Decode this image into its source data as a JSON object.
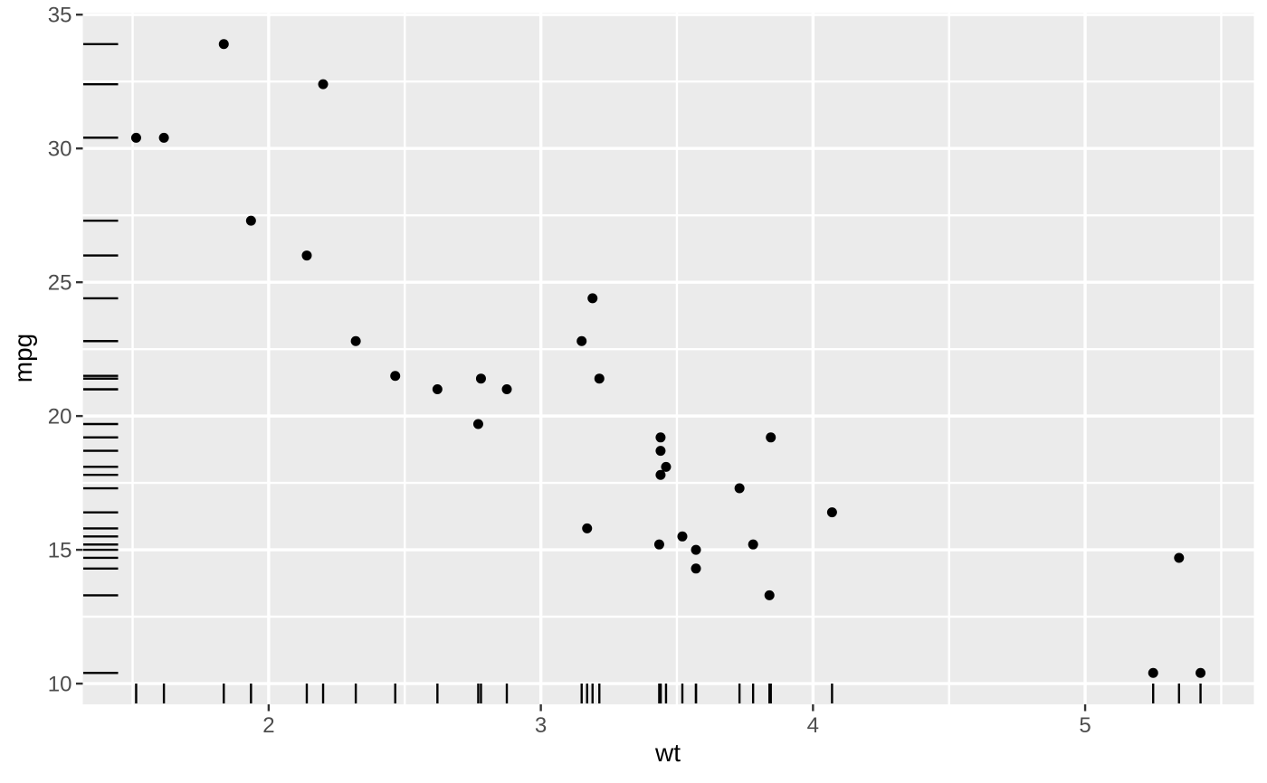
{
  "chart_data": {
    "type": "scatter",
    "title": "",
    "xlabel": "wt",
    "ylabel": "mpg",
    "xlim": [
      1.317,
      5.62
    ],
    "ylim": [
      9.225,
      35.075
    ],
    "x_ticks": [
      2,
      3,
      4,
      5
    ],
    "y_ticks": [
      10,
      15,
      20,
      25,
      30,
      35
    ],
    "x_minor_ticks": [
      1.5,
      2.5,
      3.5,
      4.5,
      5.5
    ],
    "y_minor_ticks": [
      12.5,
      17.5,
      22.5,
      27.5,
      32.5
    ],
    "grid": "on",
    "legend": "none",
    "rug_sides": "bottom-left",
    "points": [
      {
        "wt": 2.62,
        "mpg": 21.0
      },
      {
        "wt": 2.875,
        "mpg": 21.0
      },
      {
        "wt": 2.32,
        "mpg": 22.8
      },
      {
        "wt": 3.215,
        "mpg": 21.4
      },
      {
        "wt": 3.44,
        "mpg": 18.7
      },
      {
        "wt": 3.46,
        "mpg": 18.1
      },
      {
        "wt": 3.57,
        "mpg": 14.3
      },
      {
        "wt": 3.19,
        "mpg": 24.4
      },
      {
        "wt": 3.15,
        "mpg": 22.8
      },
      {
        "wt": 3.44,
        "mpg": 19.2
      },
      {
        "wt": 3.44,
        "mpg": 17.8
      },
      {
        "wt": 4.07,
        "mpg": 16.4
      },
      {
        "wt": 3.73,
        "mpg": 17.3
      },
      {
        "wt": 3.78,
        "mpg": 15.2
      },
      {
        "wt": 5.25,
        "mpg": 10.4
      },
      {
        "wt": 5.424,
        "mpg": 10.4
      },
      {
        "wt": 5.345,
        "mpg": 14.7
      },
      {
        "wt": 2.2,
        "mpg": 32.4
      },
      {
        "wt": 1.615,
        "mpg": 30.4
      },
      {
        "wt": 1.835,
        "mpg": 33.9
      },
      {
        "wt": 2.465,
        "mpg": 21.5
      },
      {
        "wt": 3.52,
        "mpg": 15.5
      },
      {
        "wt": 3.435,
        "mpg": 15.2
      },
      {
        "wt": 3.84,
        "mpg": 13.3
      },
      {
        "wt": 3.845,
        "mpg": 19.2
      },
      {
        "wt": 1.935,
        "mpg": 27.3
      },
      {
        "wt": 2.14,
        "mpg": 26.0
      },
      {
        "wt": 1.513,
        "mpg": 30.4
      },
      {
        "wt": 3.17,
        "mpg": 15.8
      },
      {
        "wt": 2.77,
        "mpg": 19.7
      },
      {
        "wt": 3.57,
        "mpg": 15.0
      },
      {
        "wt": 2.78,
        "mpg": 21.4
      }
    ],
    "colors": {
      "panel_background": "#EBEBEB",
      "grid_major": "#FFFFFF",
      "grid_minor": "#FFFFFF",
      "point": "#000000",
      "rug": "#000000",
      "tick_mark": "#333333",
      "tick_label": "#4D4D4D",
      "axis_title": "#000000"
    }
  }
}
